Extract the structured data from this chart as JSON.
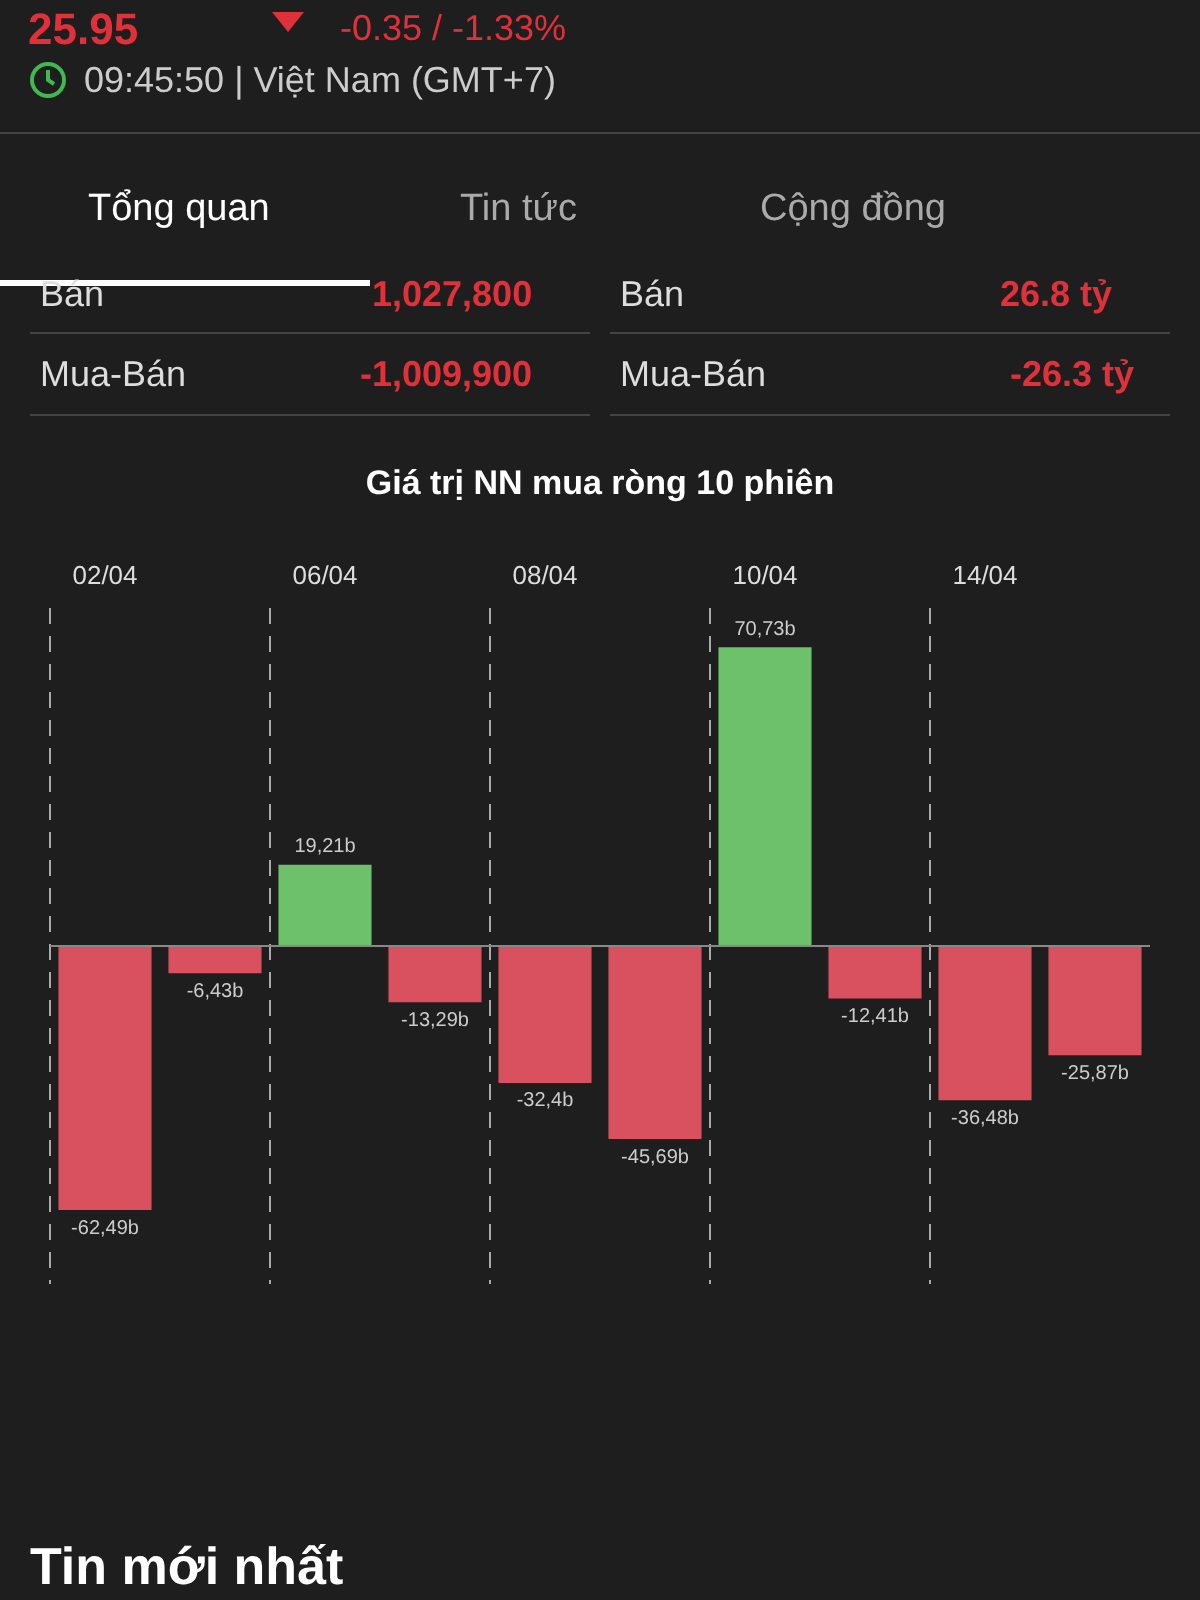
{
  "chart_data": {
    "type": "bar",
    "title": "Giá trị NN mua ròng 10 phiên",
    "categories": [
      "02/04",
      null,
      "06/04",
      null,
      "08/04",
      null,
      "10/04",
      null,
      "14/04",
      null
    ],
    "values": [
      -62.49,
      -6.43,
      19.21,
      -13.29,
      -32.4,
      -45.69,
      70.73,
      -12.41,
      -36.48,
      -25.87
    ],
    "colors": [
      "#d9505e",
      "#d9505e",
      "#6cc16a",
      "#d9505e",
      "#d9505e",
      "#d9505e",
      "#6cc16a",
      "#d9505e",
      "#d9505e",
      "#d9505e"
    ],
    "value_labels": [
      "-62,49b",
      "-6,43b",
      "19,21b",
      "-13,29b",
      "-32,4b",
      "-45,69b",
      "70,73b",
      "-12,41b",
      "-36,48b",
      "-25,87b"
    ],
    "grid": "x",
    "legend": false,
    "annotations": [
      "25.95",
      "-0.35 / -1.33%",
      "09:45:50 | Việt Nam (GMT+7)",
      "Tổng quan",
      "Tin tức",
      "Cộng đồng",
      "Bán",
      "1,027,800",
      "Bán",
      "26.8 tỷ",
      "Mua-Bán",
      "-1,009,900",
      "Mua-Bán",
      "-26.3 tỷ",
      "Tin mới nhất"
    ]
  }
}
